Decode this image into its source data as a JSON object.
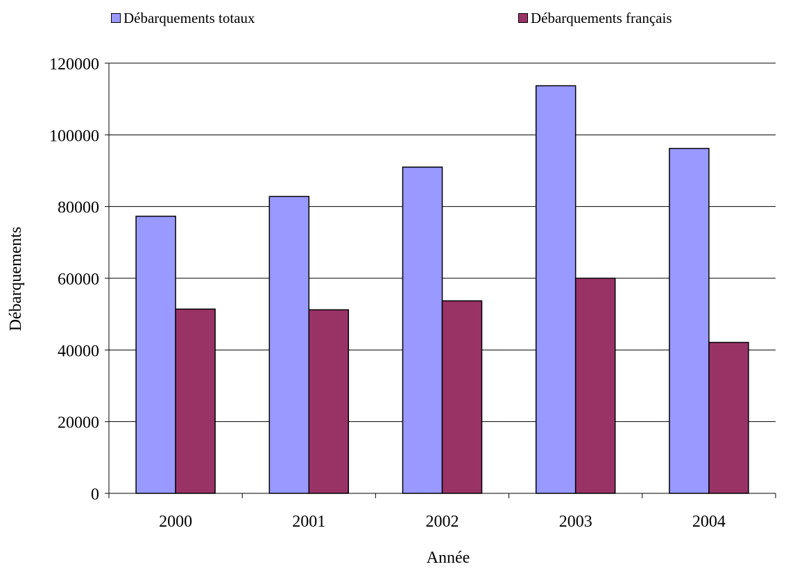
{
  "legend": {
    "total_label": "Débarquements totaux",
    "french_label": "Débarquements français"
  },
  "colors": {
    "total": "#9999ff",
    "french": "#993366",
    "gridline": "#000000",
    "axis": "#000000"
  },
  "chart_data": {
    "type": "bar",
    "title": "",
    "xlabel": "Année",
    "ylabel": "Débarquements",
    "categories": [
      "2000",
      "2001",
      "2002",
      "2003",
      "2004"
    ],
    "ylim": [
      0,
      120000
    ],
    "yticks": [
      0,
      20000,
      40000,
      60000,
      80000,
      100000,
      120000
    ],
    "series": [
      {
        "name": "Débarquements totaux",
        "values": [
          77300,
          82800,
          91000,
          113700,
          96200
        ]
      },
      {
        "name": "Débarquements français",
        "values": [
          51400,
          51200,
          53700,
          60000,
          42100
        ]
      }
    ],
    "grid": true,
    "legend_position": "top"
  }
}
